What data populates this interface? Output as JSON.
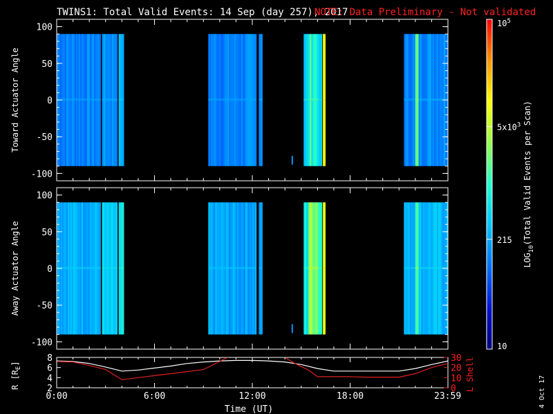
{
  "title": "TWINS1: Total Valid Events: 14 Sep (day 257), 2017",
  "note": "NOTE: Data Preliminary - Not validated",
  "date_stamp": "4 Oct 17",
  "colors": {
    "note": "#ff2020",
    "ephem_r": "#ffffff",
    "ephem_l": "#e02020"
  },
  "chart_data": [
    {
      "type": "heatmap",
      "name": "toward",
      "ylabel": "Toward Actuator Angle",
      "ylim": [
        -110,
        110
      ],
      "yticks": [
        100,
        50,
        0,
        -50,
        -100
      ],
      "data_y_range": [
        -90,
        90
      ],
      "xlim": [
        0,
        24
      ],
      "intervals": [
        {
          "start": 0.0,
          "end": 2.7,
          "level": 0.28,
          "var": 0.05
        },
        {
          "start": 2.78,
          "end": 2.9,
          "level": 0.32,
          "var": 0.02
        },
        {
          "start": 2.9,
          "end": 3.72,
          "level": 0.3,
          "var": 0.04
        },
        {
          "start": 3.8,
          "end": 4.0,
          "level": 0.36,
          "var": 0.02
        },
        {
          "start": 4.0,
          "end": 4.12,
          "level": 0.32,
          "var": 0.02
        },
        {
          "start": 9.3,
          "end": 12.25,
          "level": 0.28,
          "var": 0.05
        },
        {
          "start": 12.4,
          "end": 12.62,
          "level": 0.3,
          "var": 0.02
        },
        {
          "start": 15.15,
          "end": 15.45,
          "level": 0.4,
          "var": 0.05
        },
        {
          "start": 15.45,
          "end": 16.05,
          "level": 0.5,
          "var": 0.08
        },
        {
          "start": 16.05,
          "end": 16.28,
          "level": 0.38,
          "var": 0.04
        },
        {
          "start": 16.33,
          "end": 16.48,
          "level": 0.75,
          "var": 0.02
        },
        {
          "start": 21.3,
          "end": 22.0,
          "level": 0.28,
          "var": 0.04
        },
        {
          "start": 22.0,
          "end": 22.2,
          "level": 0.55,
          "var": 0.05
        },
        {
          "start": 22.2,
          "end": 24.0,
          "level": 0.3,
          "var": 0.05
        }
      ],
      "spikes": [
        {
          "x": 14.45,
          "y0": -88,
          "y1": -76,
          "level": 0.3
        }
      ]
    },
    {
      "type": "heatmap",
      "name": "away",
      "ylabel": "Away Actuator Angle",
      "ylim": [
        -110,
        110
      ],
      "yticks": [
        100,
        50,
        0,
        -50,
        -100
      ],
      "data_y_range": [
        -90,
        90
      ],
      "xlim": [
        0,
        24
      ],
      "intervals": [
        {
          "start": 0.0,
          "end": 2.7,
          "level": 0.35,
          "var": 0.05
        },
        {
          "start": 2.78,
          "end": 2.9,
          "level": 0.42,
          "var": 0.02
        },
        {
          "start": 2.9,
          "end": 3.72,
          "level": 0.38,
          "var": 0.04
        },
        {
          "start": 3.8,
          "end": 4.0,
          "level": 0.42,
          "var": 0.02
        },
        {
          "start": 4.0,
          "end": 4.12,
          "level": 0.46,
          "var": 0.02
        },
        {
          "start": 9.3,
          "end": 12.25,
          "level": 0.33,
          "var": 0.05
        },
        {
          "start": 12.4,
          "end": 12.62,
          "level": 0.32,
          "var": 0.02
        },
        {
          "start": 15.15,
          "end": 15.45,
          "level": 0.45,
          "var": 0.05
        },
        {
          "start": 15.45,
          "end": 16.05,
          "level": 0.62,
          "var": 0.08
        },
        {
          "start": 16.05,
          "end": 16.28,
          "level": 0.5,
          "var": 0.04
        },
        {
          "start": 16.33,
          "end": 16.48,
          "level": 0.75,
          "var": 0.02
        },
        {
          "start": 21.3,
          "end": 22.0,
          "level": 0.35,
          "var": 0.04
        },
        {
          "start": 22.0,
          "end": 22.2,
          "level": 0.58,
          "var": 0.05
        },
        {
          "start": 22.2,
          "end": 24.0,
          "level": 0.36,
          "var": 0.05
        }
      ],
      "spikes": [
        {
          "x": 14.45,
          "y0": -88,
          "y1": -76,
          "level": 0.3
        }
      ]
    },
    {
      "type": "line",
      "name": "ephemeris",
      "ylabel_left": "R [R",
      "ylabel_left_sub": "E",
      "ylabel_left_end": "]",
      "ylim_left": [
        2,
        8
      ],
      "yticks_left": [
        2,
        4,
        6,
        8
      ],
      "ylabel_right": "L Shell",
      "ylim_right": [
        0,
        30
      ],
      "yticks_right": [
        0,
        10,
        20,
        30
      ],
      "xlabel": "Time (UT)",
      "xlim": [
        0,
        24
      ],
      "xticks": [
        0,
        6,
        12,
        18,
        23.983
      ],
      "xtick_labels": [
        "0:00",
        "6:00",
        "12:00",
        "18:00",
        "23:59"
      ],
      "series": [
        {
          "axis": "left",
          "x": [
            0,
            1,
            2,
            3,
            4,
            5,
            6,
            7,
            8,
            9,
            10,
            11,
            12,
            13,
            14,
            15,
            16,
            17,
            18,
            19,
            20,
            21,
            22,
            23,
            24
          ],
          "y": [
            7.3,
            7.2,
            6.8,
            6.1,
            5.3,
            5.5,
            5.9,
            6.3,
            6.8,
            7.1,
            7.3,
            7.4,
            7.4,
            7.3,
            7.1,
            6.6,
            5.8,
            5.3,
            5.3,
            5.3,
            5.3,
            5.3,
            5.8,
            6.6,
            7.3
          ]
        },
        {
          "axis": "right",
          "x": [
            0,
            1,
            2,
            3,
            4,
            5,
            6,
            7,
            8,
            9,
            10,
            10.6,
            13.9,
            14.5,
            15,
            15.5,
            16,
            17,
            18,
            19,
            20,
            21,
            22,
            23,
            24
          ],
          "y": [
            26,
            25.5,
            22,
            18,
            8,
            10,
            12,
            14,
            16,
            18,
            26,
            31,
            31,
            25,
            21,
            17,
            11,
            11,
            11,
            10.5,
            10.5,
            10.5,
            14,
            20,
            24
          ]
        }
      ]
    },
    {
      "type": "colorbar",
      "label": "LOG10(Total Valid Events per Scan)",
      "label_prefix": "LOG",
      "label_sub": "10",
      "label_suffix": "(Total Valid Events per Scan)",
      "scale": "log",
      "range": [
        10,
        100000
      ],
      "tick_values": [
        100000,
        5000,
        215,
        10
      ],
      "ticks": [
        {
          "value": 100000,
          "base": "10",
          "exp": "5"
        },
        {
          "value": 5000,
          "base": "5x10",
          "exp": "3"
        },
        {
          "value": 215,
          "base": "215",
          "exp": ""
        },
        {
          "value": 10,
          "base": "10",
          "exp": ""
        }
      ]
    }
  ]
}
